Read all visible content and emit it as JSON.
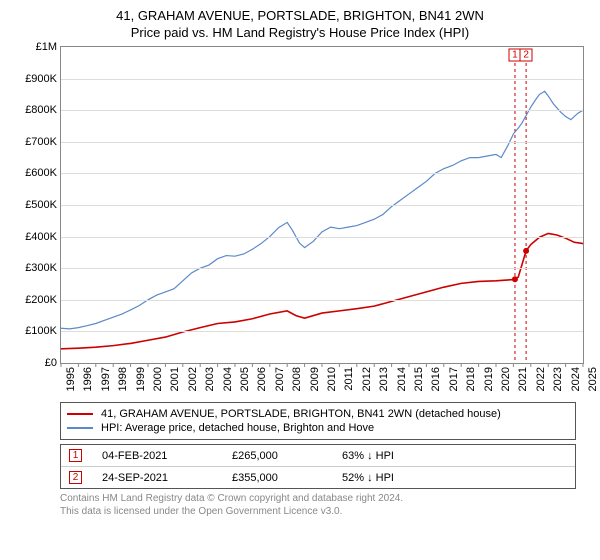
{
  "title": "41, GRAHAM AVENUE, PORTSLADE, BRIGHTON, BN41 2WN",
  "subtitle": "Price paid vs. HM Land Registry's House Price Index (HPI)",
  "chart": {
    "type": "line",
    "x_years": [
      1995,
      1996,
      1997,
      1998,
      1999,
      2000,
      2001,
      2002,
      2003,
      2004,
      2005,
      2006,
      2007,
      2008,
      2009,
      2010,
      2011,
      2012,
      2013,
      2014,
      2015,
      2016,
      2017,
      2018,
      2019,
      2020,
      2021,
      2022,
      2023,
      2024,
      2025
    ],
    "ylim": [
      0,
      1000000
    ],
    "ytick_step": 100000,
    "ytick_labels": [
      "£0",
      "£100K",
      "£200K",
      "£300K",
      "£400K",
      "£500K",
      "£600K",
      "£700K",
      "£800K",
      "£900K",
      "£1M"
    ],
    "grid_color": "#dddddd",
    "axis_color": "#888888",
    "background_color": "#ffffff",
    "series": [
      {
        "name": "hpi",
        "label": "HPI: Average price, detached house, Brighton and Hove",
        "color": "#5b8ac7",
        "line_width": 1.2,
        "data": [
          [
            1995.0,
            110000
          ],
          [
            1995.5,
            108000
          ],
          [
            1996.0,
            112000
          ],
          [
            1996.5,
            118000
          ],
          [
            1997.0,
            125000
          ],
          [
            1997.5,
            135000
          ],
          [
            1998.0,
            145000
          ],
          [
            1998.5,
            155000
          ],
          [
            1999.0,
            168000
          ],
          [
            1999.5,
            182000
          ],
          [
            2000.0,
            200000
          ],
          [
            2000.5,
            215000
          ],
          [
            2001.0,
            225000
          ],
          [
            2001.5,
            235000
          ],
          [
            2002.0,
            260000
          ],
          [
            2002.5,
            285000
          ],
          [
            2003.0,
            300000
          ],
          [
            2003.5,
            310000
          ],
          [
            2004.0,
            330000
          ],
          [
            2004.5,
            340000
          ],
          [
            2005.0,
            338000
          ],
          [
            2005.5,
            345000
          ],
          [
            2006.0,
            360000
          ],
          [
            2006.5,
            378000
          ],
          [
            2007.0,
            400000
          ],
          [
            2007.5,
            428000
          ],
          [
            2008.0,
            445000
          ],
          [
            2008.3,
            420000
          ],
          [
            2008.7,
            380000
          ],
          [
            2009.0,
            365000
          ],
          [
            2009.5,
            385000
          ],
          [
            2010.0,
            415000
          ],
          [
            2010.5,
            430000
          ],
          [
            2011.0,
            425000
          ],
          [
            2011.5,
            430000
          ],
          [
            2012.0,
            435000
          ],
          [
            2012.5,
            445000
          ],
          [
            2013.0,
            455000
          ],
          [
            2013.5,
            470000
          ],
          [
            2014.0,
            495000
          ],
          [
            2014.5,
            515000
          ],
          [
            2015.0,
            535000
          ],
          [
            2015.5,
            555000
          ],
          [
            2016.0,
            575000
          ],
          [
            2016.5,
            600000
          ],
          [
            2017.0,
            615000
          ],
          [
            2017.5,
            625000
          ],
          [
            2018.0,
            640000
          ],
          [
            2018.5,
            650000
          ],
          [
            2019.0,
            650000
          ],
          [
            2019.5,
            655000
          ],
          [
            2020.0,
            660000
          ],
          [
            2020.3,
            650000
          ],
          [
            2020.7,
            690000
          ],
          [
            2021.0,
            725000
          ],
          [
            2021.3,
            745000
          ],
          [
            2021.5,
            760000
          ],
          [
            2021.8,
            790000
          ],
          [
            2022.0,
            810000
          ],
          [
            2022.3,
            835000
          ],
          [
            2022.5,
            850000
          ],
          [
            2022.8,
            860000
          ],
          [
            2023.0,
            845000
          ],
          [
            2023.3,
            820000
          ],
          [
            2023.7,
            795000
          ],
          [
            2024.0,
            780000
          ],
          [
            2024.3,
            770000
          ],
          [
            2024.7,
            790000
          ],
          [
            2025.0,
            800000
          ]
        ]
      },
      {
        "name": "price_paid",
        "label": "41, GRAHAM AVENUE, PORTSLADE, BRIGHTON, BN41 2WN (detached house)",
        "color": "#cc0000",
        "line_width": 1.6,
        "data": [
          [
            1995.0,
            45000
          ],
          [
            1996.0,
            47000
          ],
          [
            1997.0,
            50000
          ],
          [
            1998.0,
            55000
          ],
          [
            1999.0,
            62000
          ],
          [
            2000.0,
            72000
          ],
          [
            2001.0,
            82000
          ],
          [
            2002.0,
            98000
          ],
          [
            2003.0,
            112000
          ],
          [
            2004.0,
            125000
          ],
          [
            2005.0,
            130000
          ],
          [
            2006.0,
            140000
          ],
          [
            2007.0,
            155000
          ],
          [
            2008.0,
            165000
          ],
          [
            2008.5,
            150000
          ],
          [
            2009.0,
            142000
          ],
          [
            2010.0,
            158000
          ],
          [
            2011.0,
            165000
          ],
          [
            2012.0,
            172000
          ],
          [
            2013.0,
            180000
          ],
          [
            2014.0,
            195000
          ],
          [
            2015.0,
            210000
          ],
          [
            2016.0,
            225000
          ],
          [
            2017.0,
            240000
          ],
          [
            2018.0,
            252000
          ],
          [
            2019.0,
            258000
          ],
          [
            2020.0,
            260000
          ],
          [
            2020.5,
            262000
          ],
          [
            2021.0,
            264000
          ],
          [
            2021.09,
            265000
          ],
          [
            2021.28,
            272000
          ],
          [
            2021.73,
            355000
          ],
          [
            2022.0,
            375000
          ],
          [
            2022.5,
            398000
          ],
          [
            2023.0,
            410000
          ],
          [
            2023.5,
            405000
          ],
          [
            2024.0,
            395000
          ],
          [
            2024.5,
            382000
          ],
          [
            2025.0,
            378000
          ]
        ],
        "dots": [
          {
            "x": 2021.09,
            "y": 265000
          },
          {
            "x": 2021.73,
            "y": 355000
          }
        ]
      }
    ],
    "markers": [
      {
        "id": "1",
        "x": 2021.09
      },
      {
        "id": "2",
        "x": 2021.73
      }
    ]
  },
  "legend": {
    "items": [
      {
        "color": "#cc0000",
        "label": "41, GRAHAM AVENUE, PORTSLADE, BRIGHTON, BN41 2WN (detached house)"
      },
      {
        "color": "#5b8ac7",
        "label": "HPI: Average price, detached house, Brighton and Hove"
      }
    ]
  },
  "transactions": [
    {
      "id": "1",
      "date": "04-FEB-2021",
      "price": "£265,000",
      "pct": "63%",
      "arrow": "↓",
      "vs": "HPI"
    },
    {
      "id": "2",
      "date": "24-SEP-2021",
      "price": "£355,000",
      "pct": "52%",
      "arrow": "↓",
      "vs": "HPI"
    }
  ],
  "footer_line1": "Contains HM Land Registry data © Crown copyright and database right 2024.",
  "footer_line2": "This data is licensed under the Open Government Licence v3.0.",
  "style": {
    "title_fontsize": 13,
    "tick_fontsize": 11,
    "legend_fontsize": 11,
    "footer_color": "#888888",
    "marker_border": "#cc0000"
  }
}
